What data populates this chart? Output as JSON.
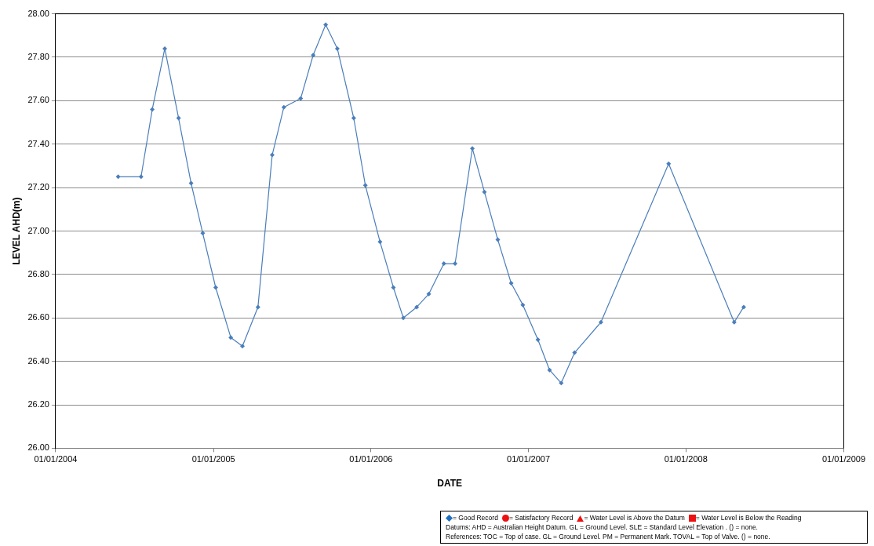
{
  "chart_data": {
    "type": "line",
    "xlabel": "DATE",
    "ylabel": "LEVEL AHD(m)",
    "x": [
      "2004-05-25",
      "2004-07-17",
      "2004-08-12",
      "2004-09-10",
      "2004-10-12",
      "2004-11-10",
      "2004-12-07",
      "2005-01-06",
      "2005-02-10",
      "2005-03-09",
      "2005-04-14",
      "2005-05-17",
      "2005-06-13",
      "2005-07-22",
      "2005-08-20",
      "2005-09-18",
      "2005-10-15",
      "2005-11-22",
      "2005-12-19",
      "2006-01-22",
      "2006-02-22",
      "2006-03-17",
      "2006-04-17",
      "2006-05-15",
      "2006-06-19",
      "2006-07-15",
      "2006-08-24",
      "2006-09-21",
      "2006-10-22",
      "2006-11-22",
      "2006-12-19",
      "2007-01-23",
      "2007-02-19",
      "2007-03-18",
      "2007-04-18",
      "2007-06-18",
      "2007-11-22",
      "2008-04-22",
      "2008-05-14"
    ],
    "series": [
      {
        "color": "#4a7ebb",
        "values": [
          27.25,
          27.25,
          27.56,
          27.84,
          27.52,
          27.22,
          26.99,
          26.74,
          26.51,
          26.47,
          26.65,
          27.35,
          27.57,
          27.61,
          27.81,
          27.95,
          27.84,
          27.52,
          27.21,
          26.95,
          26.74,
          26.6,
          26.65,
          26.71,
          26.85,
          26.85,
          27.38,
          27.18,
          26.96,
          26.76,
          26.66,
          26.5,
          26.36,
          26.3,
          26.44,
          26.58,
          27.31,
          26.58,
          26.65
        ]
      }
    ],
    "xlim": [
      "2004-01-01",
      "2009-01-01"
    ],
    "xticks": [
      {
        "value": "2004-01-01",
        "label": "01/01/2004"
      },
      {
        "value": "2005-01-01",
        "label": "01/01/2005"
      },
      {
        "value": "2006-01-01",
        "label": "01/01/2006"
      },
      {
        "value": "2007-01-01",
        "label": "01/01/2007"
      },
      {
        "value": "2008-01-01",
        "label": "01/01/2008"
      },
      {
        "value": "2009-01-01",
        "label": "01/01/2009"
      }
    ],
    "ylim": [
      26,
      28
    ],
    "yticks": [
      {
        "value": 26,
        "label": "26.00"
      },
      {
        "value": 26.2,
        "label": "26.20"
      },
      {
        "value": 26.4,
        "label": "26.40"
      },
      {
        "value": 26.6,
        "label": "26.60"
      },
      {
        "value": 26.8,
        "label": "26.80"
      },
      {
        "value": 27,
        "label": "27.00"
      },
      {
        "value": 27.2,
        "label": "27.20"
      },
      {
        "value": 27.4,
        "label": "27.40"
      },
      {
        "value": 27.6,
        "label": "27.60"
      },
      {
        "value": 27.8,
        "label": "27.80"
      },
      {
        "value": 28,
        "label": "28.00"
      }
    ],
    "grid": "y",
    "marker": "diamond",
    "line_style": "solid",
    "legend": false,
    "annotations": [
      "= Good Record",
      "= Satisfactory Record",
      "= Water Level  is Above the Datum",
      "= Water Level is Below the Reading",
      "Datums: AHD = Australian Height Datum. GL = Ground Level. SLE = Standard Level Elevation . () = none.",
      "References: TOC = Top of case. GL = Ground Level. PM = Permanent Mark. TOVAL  = Top of Valve. () = none."
    ]
  }
}
